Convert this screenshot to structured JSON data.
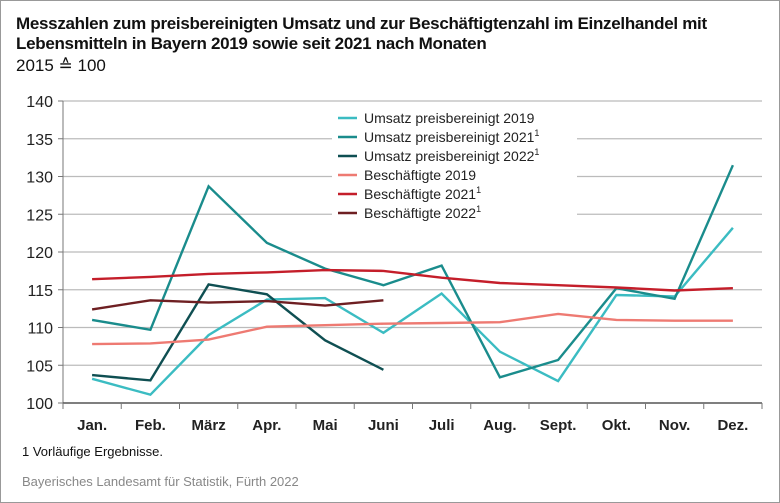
{
  "chart_data": {
    "type": "line",
    "title": "Messzahlen zum preisbereinigten Umsatz und zur Beschäftigtenzahl im Einzelhandel mit Lebensmitteln in Bayern 2019 sowie seit 2021 nach Monaten",
    "subtitle": "2015 ≙ 100",
    "xlabel": "",
    "ylabel": "",
    "ylim": [
      100,
      140
    ],
    "yticks": [
      "100",
      "105",
      "110",
      "115",
      "120",
      "125",
      "130",
      "135",
      "140"
    ],
    "grid": true,
    "legend_position": "top-center",
    "categories": [
      "Jan.",
      "Feb.",
      "März",
      "Apr.",
      "Mai",
      "Juni",
      "Juli",
      "Aug.",
      "Sept.",
      "Okt.",
      "Nov.",
      "Dez."
    ],
    "series": [
      {
        "name": "Umsatz preisbereinigt 2019",
        "sup": "",
        "color": "#3bbcc2",
        "values": [
          103.2,
          101.1,
          109.0,
          113.7,
          113.9,
          109.3,
          114.5,
          106.8,
          102.9,
          114.3,
          114.1,
          123.2
        ]
      },
      {
        "name": "Umsatz preisbereinigt 2021",
        "sup": "1",
        "color": "#1a8c8c",
        "values": [
          111.0,
          109.7,
          128.7,
          121.2,
          117.8,
          115.6,
          118.2,
          103.4,
          105.7,
          115.2,
          113.8,
          131.5
        ]
      },
      {
        "name": "Umsatz preisbereinigt 2022",
        "sup": "1",
        "color": "#0f4f52",
        "values": [
          103.7,
          103.0,
          115.7,
          114.4,
          108.3,
          104.4
        ]
      },
      {
        "name": "Beschäftigte 2019",
        "sup": "",
        "color": "#ee7a72",
        "values": [
          107.8,
          107.9,
          108.4,
          110.1,
          110.3,
          110.5,
          110.6,
          110.7,
          111.8,
          111.0,
          110.9,
          110.9
        ]
      },
      {
        "name": "Beschäftigte 2021",
        "sup": "1",
        "color": "#c41e2a",
        "values": [
          116.4,
          116.7,
          117.1,
          117.3,
          117.6,
          117.5,
          116.6,
          115.9,
          115.6,
          115.3,
          114.9,
          115.2
        ]
      },
      {
        "name": "Beschäftigte 2022",
        "sup": "1",
        "color": "#6e1f22",
        "values": [
          112.4,
          113.6,
          113.3,
          113.5,
          112.9,
          113.6
        ]
      }
    ]
  },
  "footnote": "1  Vorläufige Ergebnisse.",
  "source": "Bayerisches Landesamt für Statistik, Fürth 2022"
}
